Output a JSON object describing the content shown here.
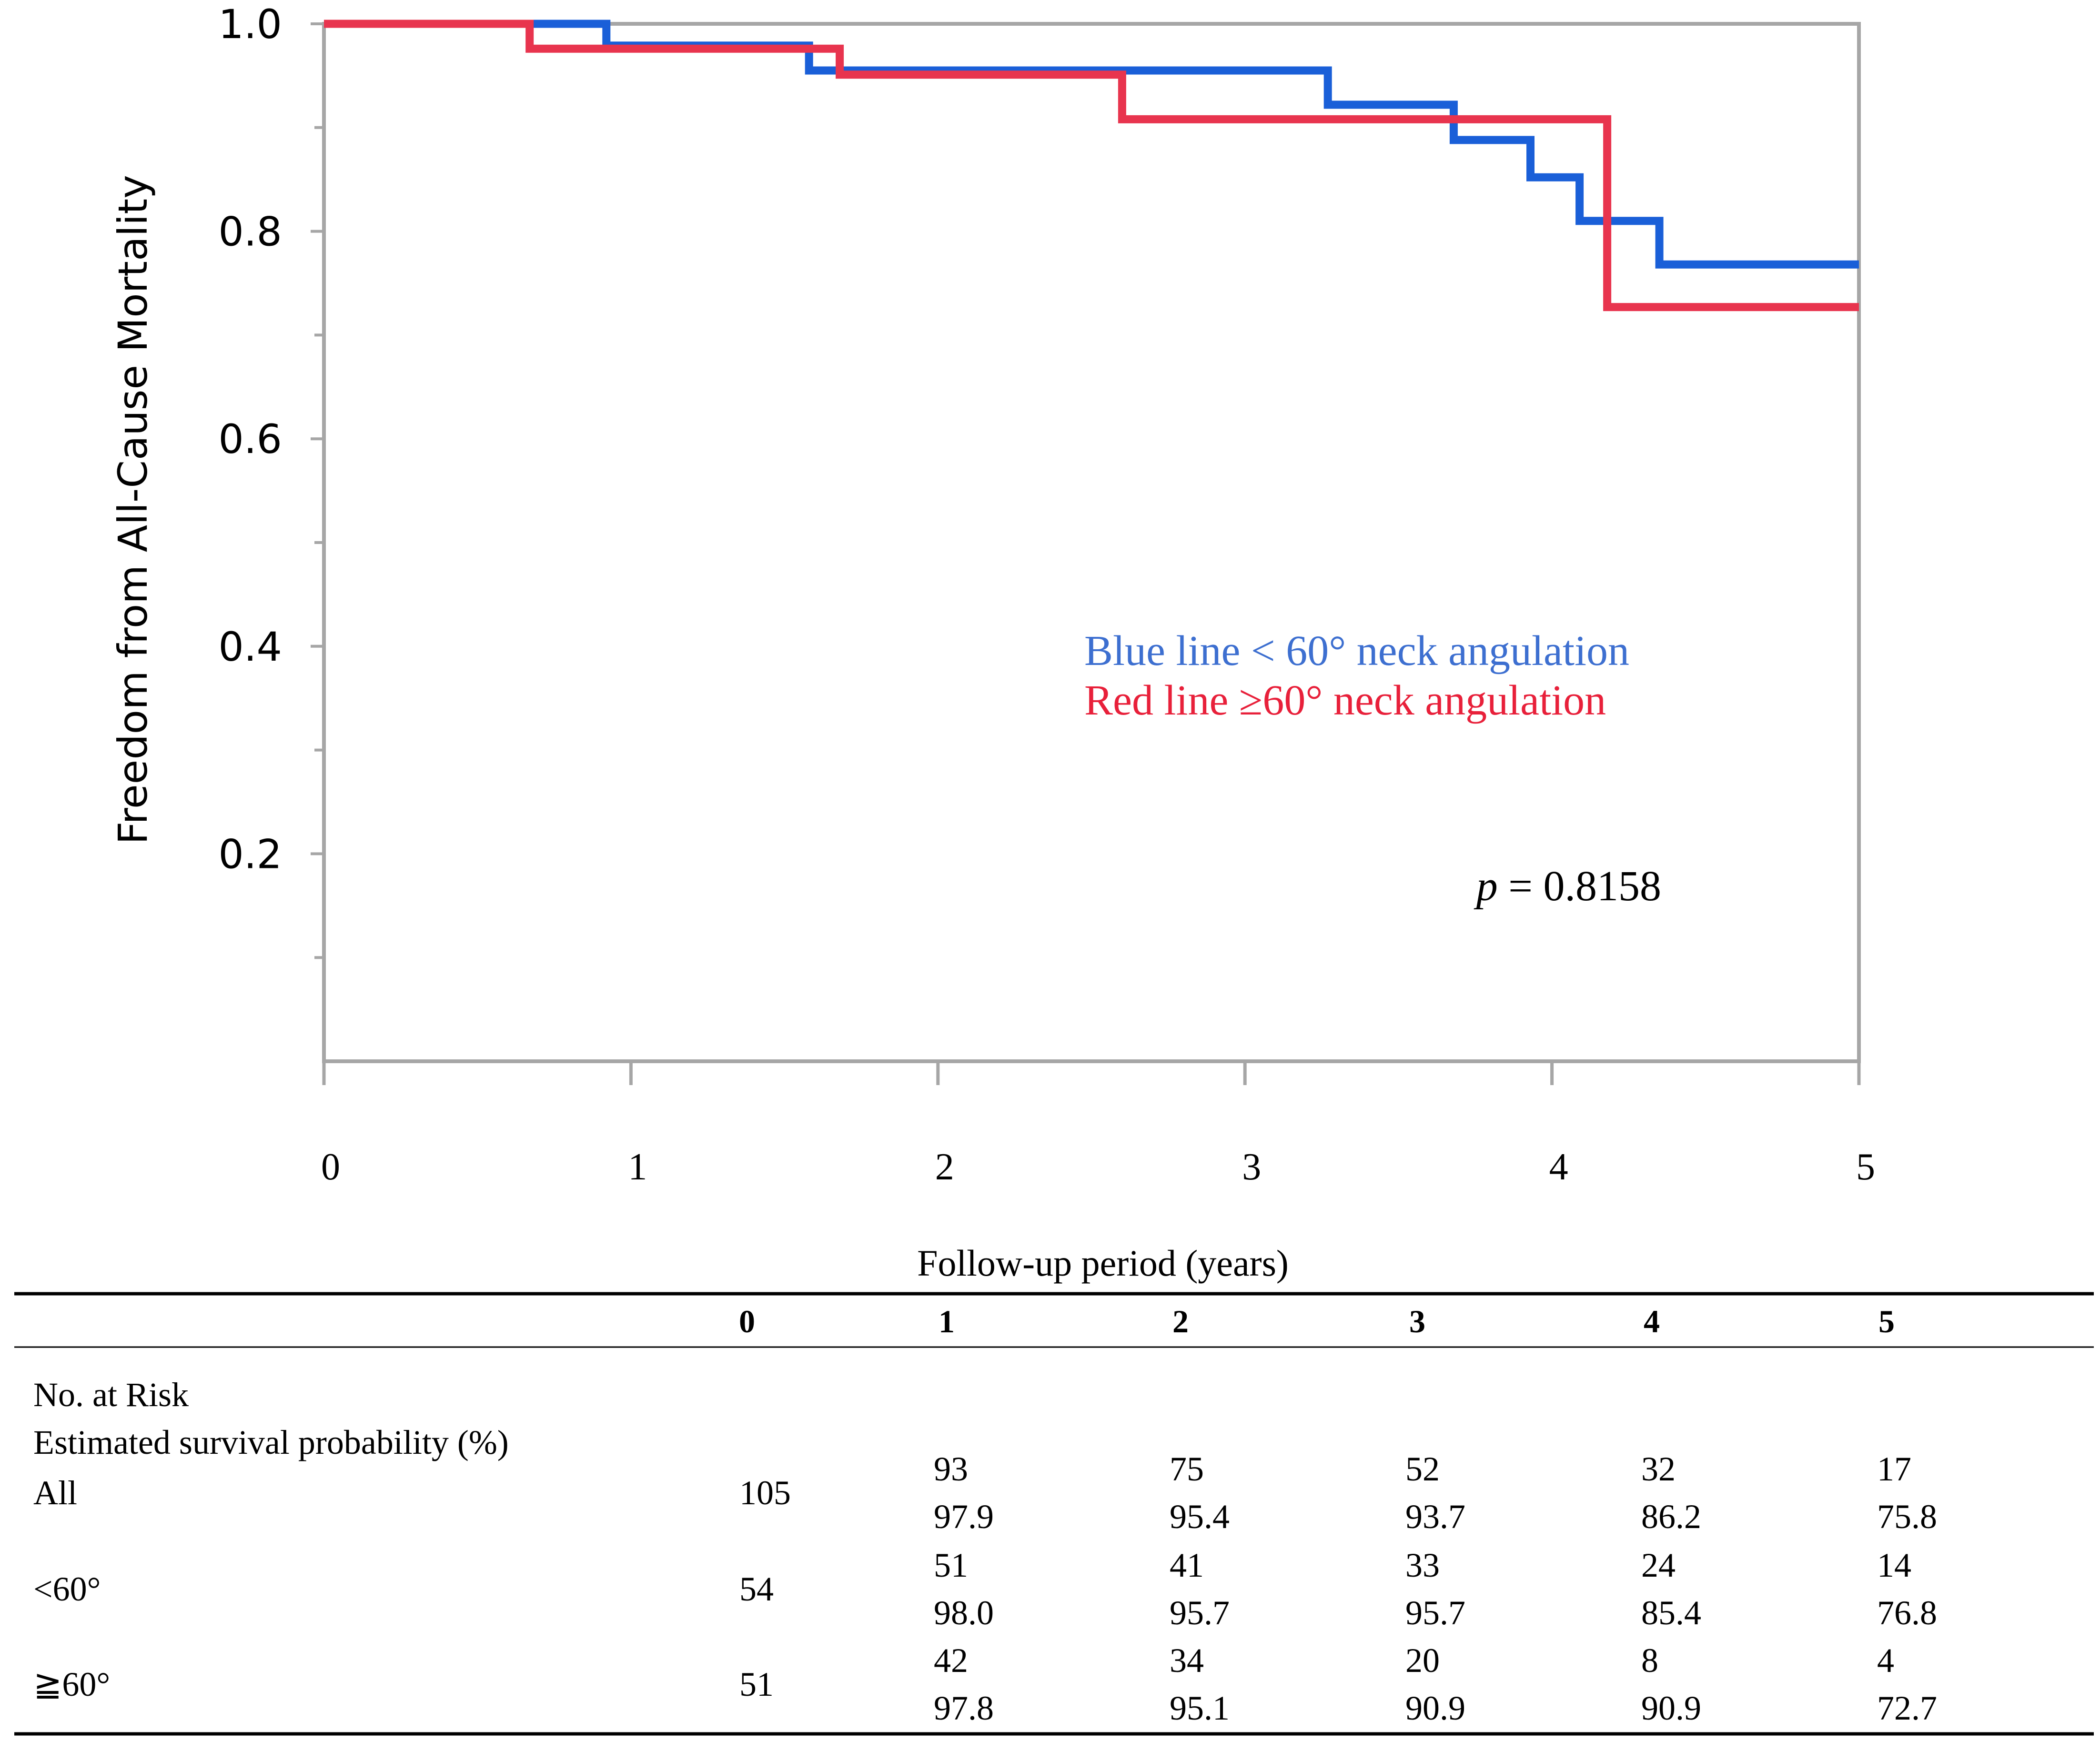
{
  "chart_data": {
    "type": "line",
    "step": true,
    "ylabel": "Freedom from All-Cause Mortality",
    "xlabel": "Follow-up period (years)",
    "xlim": [
      0,
      5
    ],
    "ylim": [
      0,
      1.0
    ],
    "x_ticks": [
      "0",
      "1",
      "2",
      "3",
      "4",
      "5"
    ],
    "y_ticks": [
      {
        "value": 1.0,
        "label": "1.0"
      },
      {
        "value": 0.8,
        "label": "0.8"
      },
      {
        "value": 0.6,
        "label": "0.6"
      },
      {
        "value": 0.4,
        "label": "0.4"
      },
      {
        "value": 0.2,
        "label": "0.2"
      }
    ],
    "y_minor_ticks": [
      0.9,
      0.7,
      0.5,
      0.3,
      0.1
    ],
    "series": [
      {
        "name": "Blue line < 60° neck angulation",
        "color": "#1a5fd8",
        "x": [
          0,
          0.92,
          0.92,
          1.58,
          1.58,
          3.27,
          3.27,
          3.68,
          3.68,
          3.93,
          3.93,
          4.09,
          4.09,
          4.35,
          4.35,
          5.0
        ],
        "y": [
          1.0,
          1.0,
          0.979,
          0.979,
          0.955,
          0.955,
          0.922,
          0.922,
          0.888,
          0.888,
          0.852,
          0.852,
          0.81,
          0.81,
          0.768,
          0.768
        ]
      },
      {
        "name": "Red line ≥60° neck angulation",
        "color": "#e8344e",
        "x": [
          0,
          0.67,
          0.67,
          1.68,
          1.68,
          2.6,
          2.6,
          4.18,
          4.18,
          5.0
        ],
        "y": [
          1.0,
          1.0,
          0.976,
          0.976,
          0.951,
          0.951,
          0.908,
          0.908,
          0.727,
          0.727
        ]
      }
    ],
    "legend": {
      "blue_label": "Blue line < 60° neck angulation",
      "red_label": "Red line ≥60° neck angulation",
      "blue_color": "#3d6fd0",
      "red_color": "#e8203a",
      "position": "center-right"
    },
    "annotation": {
      "p_symbol": "p",
      "p_text": " = 0.8158"
    }
  },
  "table": {
    "columns": [
      "0",
      "1",
      "2",
      "3",
      "4",
      "5"
    ],
    "header_rows": [
      "No. at Risk",
      "Estimated survival probability (%)"
    ],
    "groups": [
      {
        "label": "All",
        "n0": "105",
        "at_risk": [
          "93",
          "75",
          "52",
          "32",
          "17"
        ],
        "survival": [
          "97.9",
          "95.4",
          "93.7",
          "86.2",
          "75.8"
        ]
      },
      {
        "label": "<60°",
        "n0": "54",
        "at_risk": [
          "51",
          "41",
          "33",
          "24",
          "14"
        ],
        "survival": [
          "98.0",
          "95.7",
          "95.7",
          "85.4",
          "76.8"
        ]
      },
      {
        "label": "≧60°",
        "n0": "51",
        "at_risk": [
          "42",
          "34",
          "20",
          "8",
          "4"
        ],
        "survival": [
          "97.8",
          "95.1",
          "90.9",
          "90.9",
          "72.7"
        ]
      }
    ]
  }
}
